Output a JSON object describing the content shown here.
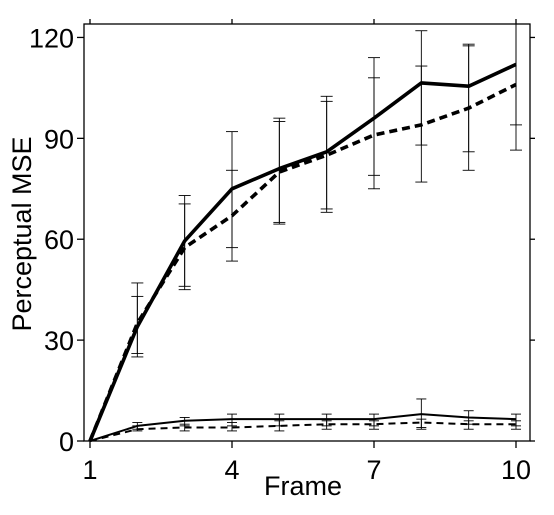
{
  "chart_data": {
    "type": "line",
    "title": "",
    "xlabel": "Frame",
    "ylabel": "Perceptual MSE",
    "x": [
      1,
      2,
      3,
      4,
      5,
      6,
      7,
      8,
      9,
      10
    ],
    "xticks": [
      "1",
      "4",
      "7",
      "10"
    ],
    "yticks": [
      "0",
      "30",
      "60",
      "90",
      "120"
    ],
    "xlim": [
      1,
      10
    ],
    "ylim": [
      0,
      124
    ],
    "grid": false,
    "legend": "none",
    "series": [
      {
        "style": "solid-thick",
        "values": [
          0,
          34,
          59.5,
          75,
          81,
          86,
          96,
          106.5,
          105.5,
          112
        ],
        "err_low": [
          0,
          26,
          46,
          57.5,
          65,
          69,
          79,
          88,
          86,
          94
        ],
        "err_high": [
          0,
          43,
          73,
          92,
          96,
          102.5,
          114,
          122,
          118,
          125
        ]
      },
      {
        "style": "dashed-thick",
        "values": [
          0,
          35,
          57.5,
          67,
          80,
          85,
          91,
          94,
          99,
          106
        ],
        "err_low": [
          0,
          25,
          45,
          53.5,
          64.5,
          68,
          75,
          77,
          80.5,
          86.5
        ],
        "err_high": [
          0,
          47,
          70.5,
          80.5,
          95,
          101,
          108,
          111.5,
          117.5,
          124
        ]
      },
      {
        "style": "solid-thin",
        "values": [
          0,
          4.5,
          6,
          6.5,
          6.5,
          6.5,
          6.5,
          8,
          7,
          6.5
        ],
        "err_low": [
          0,
          3.5,
          4.5,
          4.5,
          4.5,
          4.5,
          4.5,
          4,
          5,
          4.5
        ],
        "err_high": [
          0,
          5.5,
          7,
          8,
          8,
          8,
          8,
          12.5,
          9,
          8
        ]
      },
      {
        "style": "dashed-thin",
        "values": [
          0,
          3.5,
          4,
          4,
          4.5,
          5,
          5,
          5.5,
          5,
          5
        ],
        "err_low": [
          0,
          3,
          3,
          3,
          3,
          3.5,
          3.5,
          3.5,
          3.5,
          3.5
        ],
        "err_high": [
          0,
          4.5,
          5,
          5.5,
          6,
          6,
          6,
          6.5,
          6,
          6
        ]
      }
    ]
  }
}
